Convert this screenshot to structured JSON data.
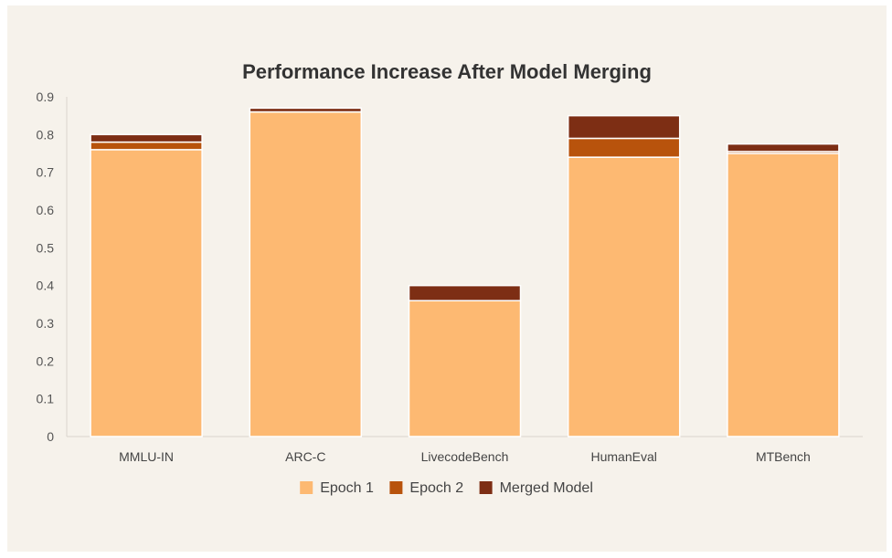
{
  "chart_data": {
    "type": "bar",
    "stacked": true,
    "title": "Performance Increase After Model Merging",
    "xlabel": "",
    "ylabel": "",
    "ylim": [
      0,
      0.9
    ],
    "yticks": [
      0,
      0.1,
      0.2,
      0.3,
      0.4,
      0.5,
      0.6,
      0.7,
      0.8,
      0.9
    ],
    "ytick_labels": [
      "0",
      "0.1",
      "0.2",
      "0.3",
      "0.4",
      "0.5",
      "0.6",
      "0.7",
      "0.8",
      "0.9"
    ],
    "categories": [
      "MMLU-IN",
      "ARC-C",
      "LivecodeBench",
      "HumanEval",
      "MTBench"
    ],
    "series": [
      {
        "name": "Epoch 1",
        "color": "#fdb972",
        "values": [
          0.76,
          0.86,
          0.36,
          0.74,
          0.75
        ]
      },
      {
        "name": "Epoch 2",
        "color": "#b8530c",
        "values": [
          0.02,
          0.0,
          0.0,
          0.05,
          0.005
        ]
      },
      {
        "name": "Merged Model",
        "color": "#7d2e14",
        "values": [
          0.02,
          0.01,
          0.04,
          0.06,
          0.02
        ]
      }
    ],
    "legend_position": "bottom"
  }
}
